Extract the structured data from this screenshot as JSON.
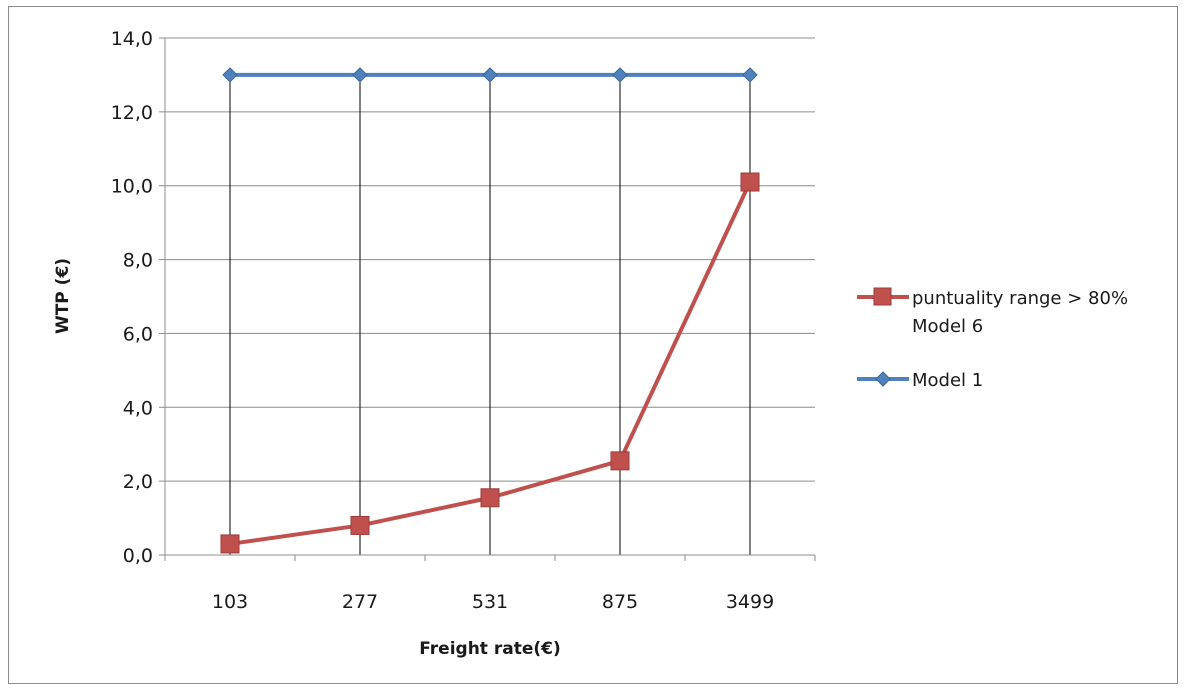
{
  "chart_data": {
    "type": "line",
    "title": "",
    "xlabel": "Freight rate(€)",
    "ylabel": "WTP (€)",
    "categories": [
      "103",
      "277",
      "531",
      "875",
      "3499"
    ],
    "ylim": [
      0,
      14
    ],
    "y_ticks": [
      "0,0",
      "2,0",
      "4,0",
      "6,0",
      "8,0",
      "10,0",
      "12,0",
      "14,0"
    ],
    "grid": true,
    "drop_lines": true,
    "legend_placement": "right",
    "series": [
      {
        "name_line1": "puntuality range > 80%",
        "name_line2": "Model 6",
        "values": [
          0.3,
          0.8,
          1.55,
          2.55,
          10.1
        ],
        "color": "#c0504d",
        "marker": "square"
      },
      {
        "name_line1": "Model 1",
        "name_line2": "",
        "values": [
          13.0,
          13.0,
          13.0,
          13.0,
          13.0
        ],
        "color": "#4f81bd",
        "marker": "diamond"
      }
    ]
  }
}
